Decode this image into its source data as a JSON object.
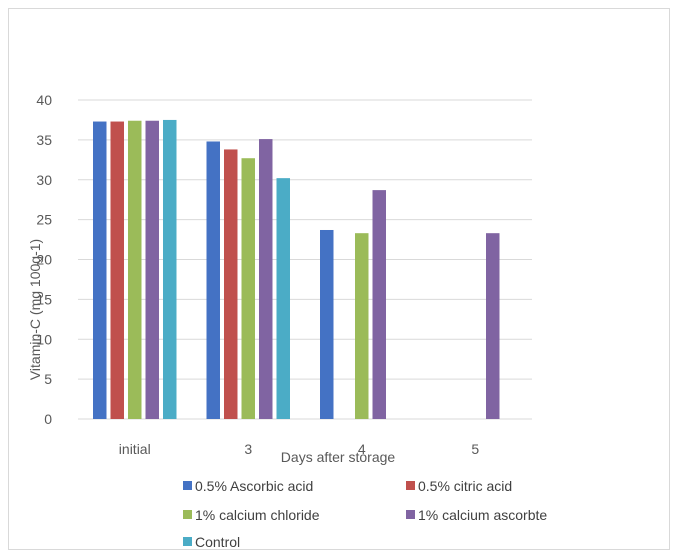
{
  "chart_data": {
    "type": "bar",
    "title": "",
    "xlabel": "Days after storage",
    "ylabel": "Vitamin-C (mg 100g-1)",
    "ylim": [
      0,
      40
    ],
    "yticks": [
      0,
      5,
      10,
      15,
      20,
      25,
      30,
      35,
      40
    ],
    "grid": true,
    "legend_position": "bottom",
    "categories": [
      "initial",
      "3",
      "4",
      "5"
    ],
    "series": [
      {
        "name": "0.5% Ascorbic acid",
        "color": "#4472c4",
        "values": [
          37.3,
          34.8,
          23.7,
          null
        ]
      },
      {
        "name": "0.5% citric acid",
        "color": "#c0504d",
        "values": [
          37.3,
          33.8,
          null,
          null
        ]
      },
      {
        "name": "1% calcium chloride",
        "color": "#9bbb59",
        "values": [
          37.4,
          32.7,
          23.3,
          null
        ]
      },
      {
        "name": "1% calcium ascorbte",
        "color": "#8064a2",
        "values": [
          37.4,
          35.1,
          28.7,
          23.3
        ]
      },
      {
        "name": "Control",
        "color": "#4bacc6",
        "values": [
          37.5,
          30.2,
          null,
          null
        ]
      }
    ]
  }
}
